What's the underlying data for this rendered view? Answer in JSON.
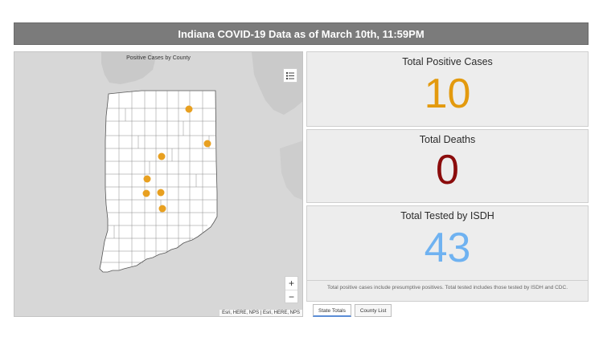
{
  "header": {
    "title": "Indiana COVID-19 Data as of March 10th, 11:59PM"
  },
  "map": {
    "title": "Positive Cases by County",
    "attribution": "Esri, HERE, NPS | Esri, HERE, NPS",
    "zoom_in": "+",
    "zoom_out": "−",
    "marker_color": "#e8a020",
    "marker_count": 7
  },
  "stats": {
    "positive": {
      "label": "Total Positive Cases",
      "value": "10",
      "color": "#e39a0e"
    },
    "deaths": {
      "label": "Total Deaths",
      "value": "0",
      "color": "#8b0c0c"
    },
    "tested": {
      "label": "Total Tested by ISDH",
      "value": "43",
      "color": "#6fb2f1"
    },
    "footnote": "Total positive cases include presumptive positives.  Total tested includes those tested by ISDH and CDC."
  },
  "tabs": [
    {
      "label": "State Totals",
      "active": true
    },
    {
      "label": "County List",
      "active": false
    }
  ]
}
